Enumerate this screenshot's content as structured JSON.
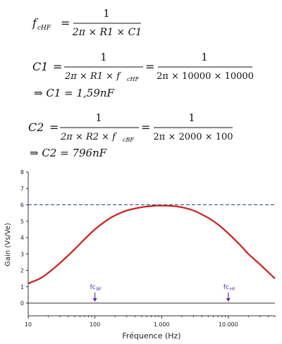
{
  "equations": {
    "eq1": {
      "lhs": "f",
      "lhs_sub": "cHF",
      "num": "1",
      "den": "2π × R1 × C1"
    },
    "eq2": {
      "lhs": "C1",
      "num1": "1",
      "den1_a": "2π × R1 × f",
      "den1_sub": "cHF",
      "num2": "1",
      "den2": "2π × 10000 × 10000",
      "result": "⇒ C1 = 1,59nF"
    },
    "eq3": {
      "lhs": "C2",
      "num1": "1",
      "den1_a": "2π × R2 × f",
      "den1_sub": "cBF",
      "num2": "1",
      "den2": "2π × 2000 × 100",
      "result": "⇒ C2 = 796nF"
    }
  },
  "chart_data": {
    "type": "line",
    "xlabel": "Fréquence (Hz)",
    "ylabel": "Gain (Vs/Ve)",
    "xscale": "log",
    "xlim": [
      10,
      50000
    ],
    "ylim": [
      0,
      8
    ],
    "x_ticks": [
      10,
      100,
      1000,
      10000
    ],
    "x_tick_labels": [
      "10",
      "100",
      "1.000",
      "10.000"
    ],
    "y_ticks": [
      0,
      1,
      2,
      3,
      4,
      5,
      6,
      7,
      8
    ],
    "y_tick_labels": [
      "0",
      "1",
      "2",
      "3",
      "4",
      "5",
      "6",
      "7",
      "8"
    ],
    "reference_line": {
      "y": 6,
      "style": "dashed",
      "color": "#2e3f8f"
    },
    "series": [
      {
        "color": "#cc1f1f",
        "x": [
          10,
          15,
          20,
          30,
          50,
          70,
          100,
          150,
          200,
          300,
          500,
          700,
          1000,
          1500,
          2000,
          3000,
          5000,
          7000,
          10000,
          15000,
          20000,
          30000,
          50000
        ],
        "y": [
          1.2,
          1.5,
          1.85,
          2.45,
          3.3,
          3.9,
          4.5,
          5.05,
          5.35,
          5.65,
          5.85,
          5.92,
          5.95,
          5.92,
          5.85,
          5.65,
          5.2,
          4.8,
          4.25,
          3.55,
          3.0,
          2.35,
          1.5
        ]
      }
    ],
    "annotations": [
      {
        "label": "fc",
        "sub": "BF",
        "x": 100,
        "color": "#5a2fa0"
      },
      {
        "label": "fc",
        "sub": "HF",
        "x": 10000,
        "color": "#5a2fa0"
      }
    ],
    "grid": false
  }
}
